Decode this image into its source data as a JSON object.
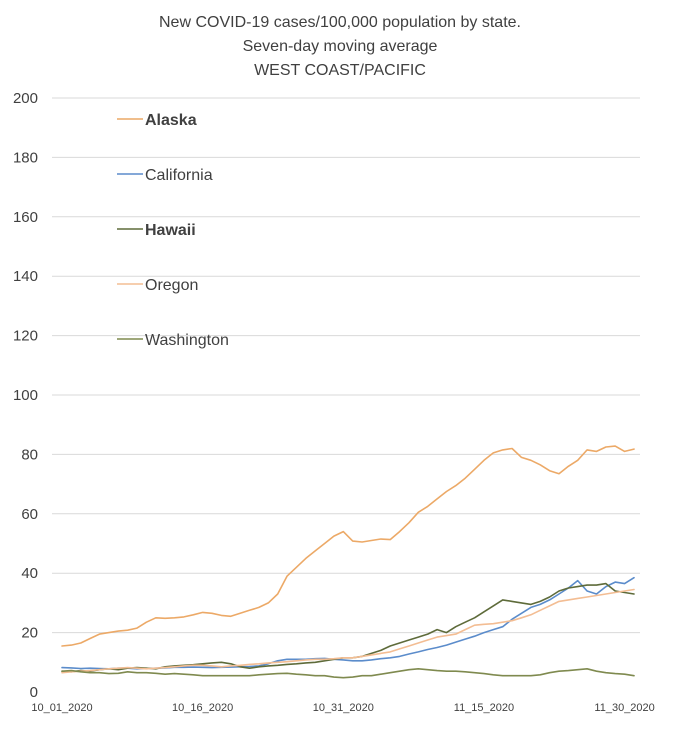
{
  "chart_data": {
    "type": "line",
    "title": [
      "New COVID-19 cases/100,000 population by state.",
      "Seven-day moving average",
      "WEST COAST/PACIFIC"
    ],
    "xlabel": "",
    "ylabel": "",
    "ylim": [
      0,
      200
    ],
    "yticks": [
      0,
      20,
      40,
      60,
      80,
      100,
      120,
      140,
      160,
      180,
      200
    ],
    "grid": true,
    "legend_position": "top-left, inside plot",
    "x_tick_labels": [
      {
        "index": 0,
        "label": "10_01_2020"
      },
      {
        "index": 15,
        "label": "10_16_2020"
      },
      {
        "index": 30,
        "label": "10_31_2020"
      },
      {
        "index": 45,
        "label": "11_15_2020"
      },
      {
        "index": 60,
        "label": "11_30_2020"
      }
    ],
    "x_count": 62,
    "series": [
      {
        "name": "Alaska",
        "color": "#eca967",
        "bold_label": true,
        "values": [
          15.5,
          15.8,
          16.5,
          18.0,
          19.5,
          20.0,
          20.5,
          20.8,
          21.5,
          23.5,
          25.0,
          24.8,
          25.0,
          25.3,
          26.0,
          26.8,
          26.5,
          25.8,
          25.5,
          26.5,
          27.5,
          28.5,
          30.0,
          33.0,
          39.0,
          42.0,
          45.0,
          47.5,
          50.0,
          52.5,
          54.0,
          50.8,
          50.5,
          51.0,
          51.5,
          51.3,
          54.0,
          57.0,
          60.5,
          62.5,
          65.0,
          67.5,
          69.5,
          72.0,
          75.0,
          78.0,
          80.5,
          81.5,
          82.0,
          79.0,
          78.0,
          76.5,
          74.5,
          73.5,
          76.0,
          78.0,
          81.5,
          81.0,
          82.5,
          82.8,
          81.0,
          81.8
        ]
      },
      {
        "name": "California",
        "color": "#5b8ccb",
        "bold_label": false,
        "values": [
          8.2,
          8.1,
          7.9,
          8.0,
          7.9,
          7.8,
          8.0,
          8.0,
          7.8,
          7.9,
          8.0,
          8.1,
          8.3,
          8.3,
          8.4,
          8.3,
          8.2,
          8.3,
          8.4,
          8.5,
          8.6,
          8.8,
          9.5,
          10.5,
          11.0,
          11.0,
          11.0,
          11.2,
          11.3,
          11.0,
          10.8,
          10.5,
          10.5,
          10.8,
          11.2,
          11.5,
          12.0,
          12.8,
          13.5,
          14.3,
          15.0,
          15.8,
          16.8,
          17.8,
          18.8,
          20.0,
          21.0,
          22.0,
          24.5,
          26.5,
          28.5,
          29.5,
          31.0,
          33.0,
          35.0,
          37.5,
          34.0,
          33.0,
          35.5,
          37.0,
          36.5,
          38.5
        ]
      },
      {
        "name": "Hawaii",
        "color": "#5e6b3a",
        "bold_label": true,
        "values": [
          7.0,
          6.8,
          7.2,
          7.0,
          7.5,
          7.8,
          7.5,
          8.0,
          8.2,
          8.0,
          7.8,
          8.5,
          8.8,
          9.0,
          9.2,
          9.5,
          9.8,
          10.0,
          9.5,
          8.5,
          8.0,
          8.5,
          8.8,
          9.0,
          9.3,
          9.5,
          9.8,
          10.0,
          10.5,
          11.0,
          11.5,
          11.5,
          12.0,
          13.0,
          14.0,
          15.5,
          16.5,
          17.5,
          18.5,
          19.5,
          21.0,
          20.0,
          22.0,
          23.5,
          25.0,
          27.0,
          29.0,
          31.0,
          30.5,
          30.0,
          29.5,
          30.5,
          32.0,
          34.0,
          35.0,
          35.5,
          36.0,
          36.0,
          36.5,
          34.0,
          33.5,
          33.0
        ]
      },
      {
        "name": "Oregon",
        "color": "#f3bd93",
        "bold_label": false,
        "values": [
          6.5,
          6.8,
          7.0,
          7.2,
          7.5,
          7.8,
          8.0,
          8.2,
          8.0,
          7.8,
          8.0,
          8.2,
          8.5,
          8.8,
          9.0,
          9.0,
          8.8,
          8.5,
          8.8,
          9.0,
          9.3,
          9.5,
          9.8,
          10.0,
          10.2,
          10.5,
          10.8,
          11.0,
          11.0,
          11.2,
          11.5,
          11.5,
          12.0,
          12.5,
          13.0,
          13.5,
          14.5,
          15.5,
          16.5,
          17.5,
          18.5,
          19.0,
          19.5,
          21.0,
          22.5,
          22.8,
          23.0,
          23.5,
          24.0,
          25.0,
          26.0,
          27.5,
          29.0,
          30.5,
          31.0,
          31.5,
          32.0,
          32.5,
          33.0,
          33.5,
          34.0,
          34.5
        ]
      },
      {
        "name": "Washington",
        "color": "#7f8a4f",
        "bold_label": false,
        "values": [
          7.0,
          7.2,
          6.8,
          6.5,
          6.5,
          6.2,
          6.3,
          6.8,
          6.5,
          6.5,
          6.3,
          6.0,
          6.2,
          6.0,
          5.8,
          5.5,
          5.5,
          5.5,
          5.5,
          5.5,
          5.5,
          5.8,
          6.0,
          6.2,
          6.3,
          6.0,
          5.8,
          5.5,
          5.5,
          5.0,
          4.8,
          5.0,
          5.5,
          5.5,
          6.0,
          6.5,
          7.0,
          7.5,
          7.8,
          7.5,
          7.2,
          7.0,
          7.0,
          6.8,
          6.5,
          6.2,
          5.8,
          5.5,
          5.5,
          5.5,
          5.5,
          5.8,
          6.5,
          7.0,
          7.2,
          7.5,
          7.8,
          7.0,
          6.5,
          6.2,
          6.0,
          5.5
        ]
      }
    ]
  }
}
